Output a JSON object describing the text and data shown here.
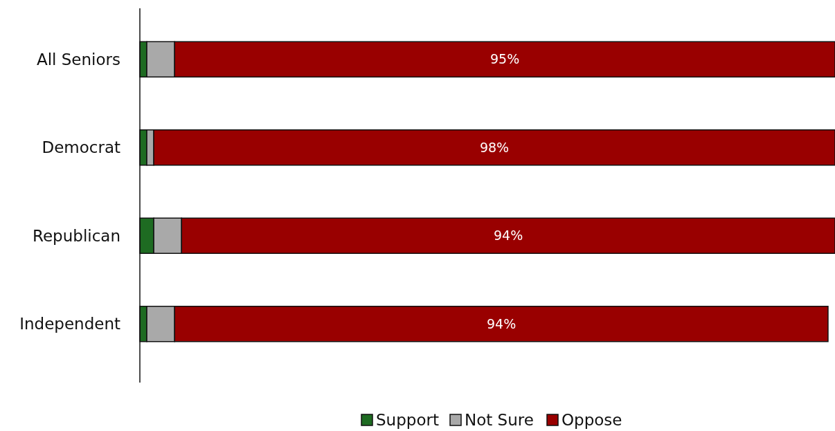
{
  "chart_data": {
    "type": "bar",
    "orientation": "horizontal",
    "stacked": true,
    "categories": [
      "All Seniors",
      "Democrat",
      "Republican",
      "Independent"
    ],
    "xlim": [
      0,
      100
    ],
    "tick_labels": "y",
    "legend": "bottom",
    "series": [
      {
        "name": "Support",
        "color": "#1e6b22",
        "values": [
          1,
          1,
          2,
          1
        ]
      },
      {
        "name": "Not Sure",
        "color": "#a9a9a9",
        "values": [
          4,
          1,
          4,
          4
        ]
      },
      {
        "name": "Oppose",
        "color": "#990000",
        "values": [
          95,
          98,
          94,
          94
        ],
        "value_labels": [
          "95%",
          "98%",
          "94%",
          "94%"
        ]
      }
    ]
  }
}
